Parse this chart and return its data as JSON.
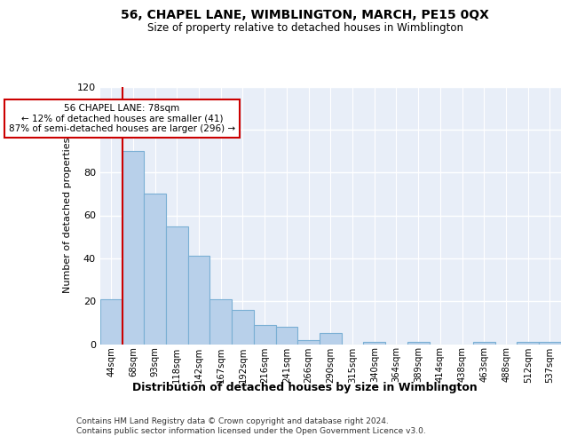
{
  "title1": "56, CHAPEL LANE, WIMBLINGTON, MARCH, PE15 0QX",
  "title2": "Size of property relative to detached houses in Wimblington",
  "xlabel": "Distribution of detached houses by size in Wimblington",
  "ylabel": "Number of detached properties",
  "footnote1": "Contains HM Land Registry data © Crown copyright and database right 2024.",
  "footnote2": "Contains public sector information licensed under the Open Government Licence v3.0.",
  "categories": [
    "44sqm",
    "68sqm",
    "93sqm",
    "118sqm",
    "142sqm",
    "167sqm",
    "192sqm",
    "216sqm",
    "241sqm",
    "266sqm",
    "290sqm",
    "315sqm",
    "340sqm",
    "364sqm",
    "389sqm",
    "414sqm",
    "438sqm",
    "463sqm",
    "488sqm",
    "512sqm",
    "537sqm"
  ],
  "values": [
    21,
    90,
    70,
    55,
    41,
    21,
    16,
    9,
    8,
    2,
    5,
    0,
    1,
    0,
    1,
    0,
    0,
    1,
    0,
    1,
    1
  ],
  "bar_color": "#b8d0ea",
  "bar_edge_color": "#7aafd4",
  "background_color": "#e8eef8",
  "grid_color": "#ffffff",
  "ref_line_x": 1,
  "ref_line_color": "#cc0000",
  "annotation_text": "56 CHAPEL LANE: 78sqm\n← 12% of detached houses are smaller (41)\n87% of semi-detached houses are larger (296) →",
  "annotation_box_color": "#ffffff",
  "annotation_box_edge": "#cc0000",
  "ylim": [
    0,
    120
  ],
  "yticks": [
    0,
    20,
    40,
    60,
    80,
    100,
    120
  ]
}
